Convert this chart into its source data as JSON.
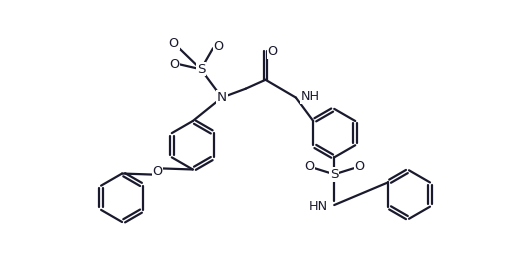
{
  "bg_color": "#ffffff",
  "line_color": "#1a1a2e",
  "line_width": 1.6,
  "figsize": [
    5.26,
    2.54
  ],
  "dpi": 100,
  "xlim": [
    0,
    10
  ],
  "ylim": [
    0,
    4.84
  ],
  "labels": {
    "O_top_S1": "O",
    "O_right_S1": "O",
    "S1": "S",
    "N": "N",
    "O_carbonyl": "O",
    "NH_amide": "NH",
    "O_phenoxy": "O",
    "S2": "S",
    "O_left_S2": "O",
    "O_right_S2": "O",
    "NH_sulfonamide": "HN"
  }
}
